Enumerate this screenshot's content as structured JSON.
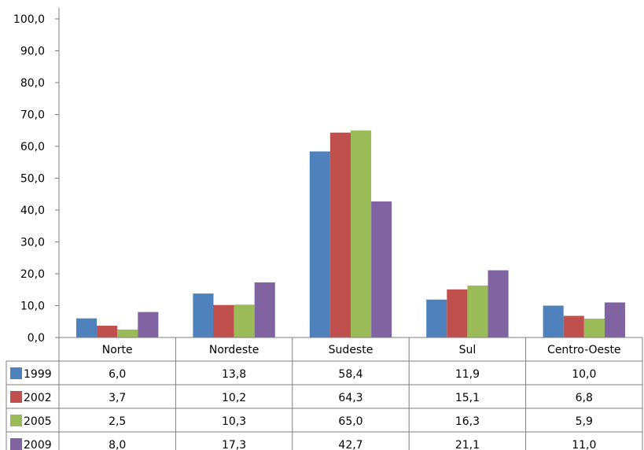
{
  "chart_data": {
    "type": "bar",
    "categories": [
      "Norte",
      "Nordeste",
      "Sudeste",
      "Sul",
      "Centro-Oeste"
    ],
    "series": [
      {
        "name": "1999",
        "color": "#4f81bd",
        "values": [
          6.0,
          13.8,
          58.4,
          11.9,
          10.0
        ],
        "labels": [
          "6,0",
          "13,8",
          "58,4",
          "11,9",
          "10,0"
        ]
      },
      {
        "name": "2002",
        "color": "#c0504d",
        "values": [
          3.7,
          10.2,
          64.3,
          15.1,
          6.8
        ],
        "labels": [
          "3,7",
          "10,2",
          "64,3",
          "15,1",
          "6,8"
        ]
      },
      {
        "name": "2005",
        "color": "#9bbb59",
        "values": [
          2.5,
          10.3,
          65.0,
          16.3,
          5.9
        ],
        "labels": [
          "2,5",
          "10,3",
          "65,0",
          "16,3",
          "5,9"
        ]
      },
      {
        "name": "2009",
        "color": "#8064a2",
        "values": [
          8.0,
          17.3,
          42.7,
          21.1,
          11.0
        ],
        "labels": [
          "8,0",
          "17,3",
          "42,7",
          "21,1",
          "11,0"
        ]
      }
    ],
    "ylim": [
      0,
      100
    ],
    "yticks": [
      0,
      10,
      20,
      30,
      40,
      50,
      60,
      70,
      80,
      90,
      100
    ],
    "ytick_labels": [
      "0,0",
      "10,0",
      "20,0",
      "30,0",
      "40,0",
      "50,0",
      "60,0",
      "70,0",
      "80,0",
      "90,0",
      "100,0"
    ],
    "grid": false,
    "legend": "data-table-left"
  }
}
